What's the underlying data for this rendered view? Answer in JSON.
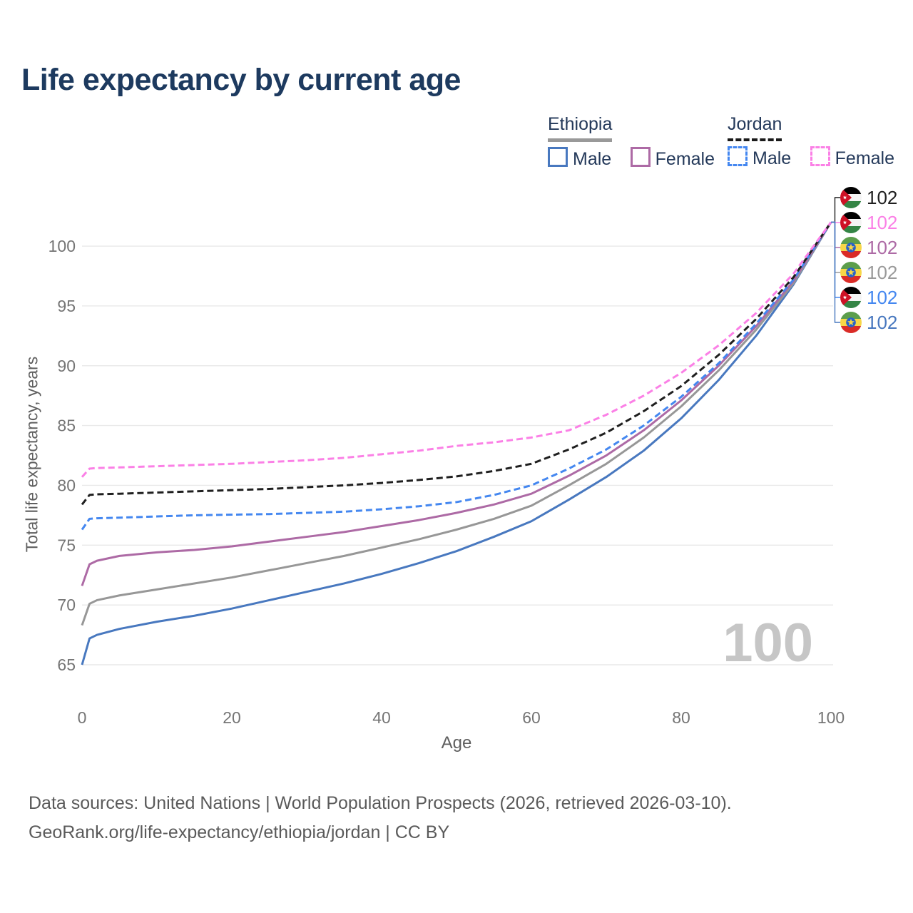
{
  "header": {
    "title": "Life expectancy by current age"
  },
  "legend": {
    "groups": [
      {
        "name": "Ethiopia",
        "line_style": "solid",
        "line_color": "#999999",
        "items": [
          {
            "label": "Male",
            "color": "#4878bf",
            "style": "solid"
          },
          {
            "label": "Female",
            "color": "#ad6aa5",
            "style": "solid"
          }
        ]
      },
      {
        "name": "Jordan",
        "line_style": "dashed",
        "line_color": "#1a1a1a",
        "items": [
          {
            "label": "Male",
            "color": "#4487f0",
            "style": "dashed"
          },
          {
            "label": "Female",
            "color": "#fb80e6",
            "style": "dashed"
          }
        ]
      }
    ]
  },
  "chart_data": {
    "type": "line",
    "title": "Life expectancy by current age",
    "xlabel": "Age",
    "ylabel": "Total life expectancy, years",
    "xlim": [
      0,
      100
    ],
    "ylim": [
      65,
      100
    ],
    "xticks": [
      0,
      20,
      40,
      60,
      80,
      100
    ],
    "yticks": [
      65,
      70,
      75,
      80,
      85,
      90,
      95,
      100
    ],
    "grid": "horizontal",
    "legend_position": "top-right",
    "watermark": "100",
    "x": [
      0,
      1,
      2,
      5,
      10,
      15,
      20,
      25,
      30,
      35,
      40,
      45,
      50,
      55,
      60,
      65,
      70,
      75,
      80,
      85,
      90,
      95,
      100
    ],
    "series": [
      {
        "name": "Ethiopia Male",
        "country": "Ethiopia",
        "sex": "Male",
        "color": "#4878bf",
        "dash": false,
        "values": [
          65.0,
          67.2,
          67.5,
          68.0,
          68.6,
          69.1,
          69.7,
          70.4,
          71.1,
          71.8,
          72.6,
          73.5,
          74.5,
          75.7,
          77.0,
          78.8,
          80.7,
          82.9,
          85.6,
          88.8,
          92.5,
          96.8,
          102
        ]
      },
      {
        "name": "Ethiopia Both sexes",
        "country": "Ethiopia",
        "sex": "Both sexes",
        "color": "#979797",
        "dash": false,
        "values": [
          68.3,
          70.1,
          70.4,
          70.8,
          71.3,
          71.8,
          72.3,
          72.9,
          73.5,
          74.1,
          74.8,
          75.5,
          76.3,
          77.2,
          78.3,
          80.0,
          81.8,
          84.0,
          86.6,
          89.6,
          93.0,
          96.9,
          102
        ]
      },
      {
        "name": "Ethiopia Female",
        "country": "Ethiopia",
        "sex": "Female",
        "color": "#ad6aa5",
        "dash": false,
        "values": [
          71.6,
          73.4,
          73.7,
          74.1,
          74.4,
          74.6,
          74.9,
          75.3,
          75.7,
          76.1,
          76.6,
          77.1,
          77.7,
          78.4,
          79.3,
          80.8,
          82.5,
          84.6,
          87.1,
          90.0,
          93.3,
          97.1,
          102
        ]
      },
      {
        "name": "Jordan Male",
        "country": "Jordan",
        "sex": "Male",
        "color": "#4487f0",
        "dash": true,
        "values": [
          76.3,
          77.2,
          77.25,
          77.3,
          77.4,
          77.5,
          77.55,
          77.6,
          77.7,
          77.8,
          78.0,
          78.25,
          78.6,
          79.2,
          80.0,
          81.4,
          83.0,
          85.0,
          87.4,
          90.2,
          93.5,
          97.2,
          102
        ]
      },
      {
        "name": "Jordan Both sexes",
        "country": "Jordan",
        "sex": "Both sexes",
        "color": "#1f1f1f",
        "dash": true,
        "values": [
          78.4,
          79.2,
          79.25,
          79.3,
          79.4,
          79.5,
          79.6,
          79.7,
          79.85,
          80.0,
          80.2,
          80.45,
          80.75,
          81.2,
          81.8,
          83.0,
          84.4,
          86.2,
          88.3,
          90.9,
          93.9,
          97.4,
          102
        ]
      },
      {
        "name": "Jordan Female",
        "country": "Jordan",
        "sex": "Female",
        "color": "#fb80e6",
        "dash": true,
        "values": [
          80.7,
          81.4,
          81.45,
          81.5,
          81.6,
          81.7,
          81.8,
          81.95,
          82.1,
          82.3,
          82.6,
          82.9,
          83.3,
          83.6,
          84.0,
          84.6,
          85.9,
          87.5,
          89.4,
          91.7,
          94.4,
          97.7,
          102
        ]
      }
    ],
    "end_labels": [
      {
        "flag": "jordan",
        "series": "Jordan Both sexes",
        "value": "102",
        "color": "#1f1f1f"
      },
      {
        "flag": "jordan",
        "series": "Jordan Female",
        "value": "102",
        "color": "#fb80e6"
      },
      {
        "flag": "ethiopia",
        "series": "Ethiopia Female",
        "value": "102",
        "color": "#ad6aa5"
      },
      {
        "flag": "ethiopia",
        "series": "Ethiopia Both sexes",
        "value": "102",
        "color": "#9a9a9a"
      },
      {
        "flag": "jordan",
        "series": "Jordan Male",
        "value": "102",
        "color": "#4487f0"
      },
      {
        "flag": "ethiopia",
        "series": "Ethiopia Male",
        "value": "102",
        "color": "#4878bf"
      }
    ]
  },
  "footer": {
    "line1": "Data sources: United Nations | World Population Prospects (2026, retrieved 2026-03-10).",
    "line2": "GeoRank.org/life-expectancy/ethiopia/jordan | CC BY"
  }
}
